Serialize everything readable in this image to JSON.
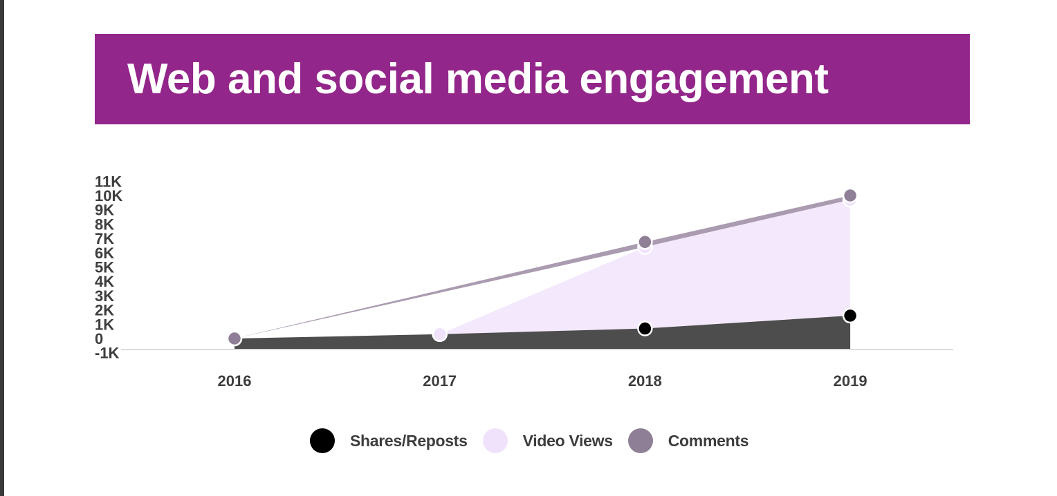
{
  "title": "Web and social media engagement",
  "colors": {
    "banner": "#93268a",
    "shares": "#000000",
    "shares_area": "#4d4d4d",
    "video": "#f0e2fb",
    "video_area": "#f4e9fc",
    "comments": "#8e7f96",
    "comments_band": "#aa9bb0",
    "axis_line": "#dddddd"
  },
  "chart_data": {
    "type": "area",
    "title": "Web and social media engagement",
    "categories": [
      "2016",
      "2017",
      "2018",
      "2019"
    ],
    "series": [
      {
        "name": "Shares/Reposts",
        "values": [
          0,
          300,
          700,
          1600
        ]
      },
      {
        "name": "Video Views",
        "values": [
          0,
          0,
          5700,
          8100
        ]
      },
      {
        "name": "Comments",
        "values": [
          0,
          null,
          350,
          300
        ]
      }
    ],
    "y_ticks": [
      "11K",
      "10K",
      "9K",
      "8K",
      "7K",
      "6K",
      "5K",
      "4K",
      "3K",
      "2K",
      "1K",
      "0",
      "-1K"
    ],
    "ylim": [
      -1000,
      11000
    ],
    "stacked": true,
    "legend_position": "bottom",
    "grid": false
  }
}
